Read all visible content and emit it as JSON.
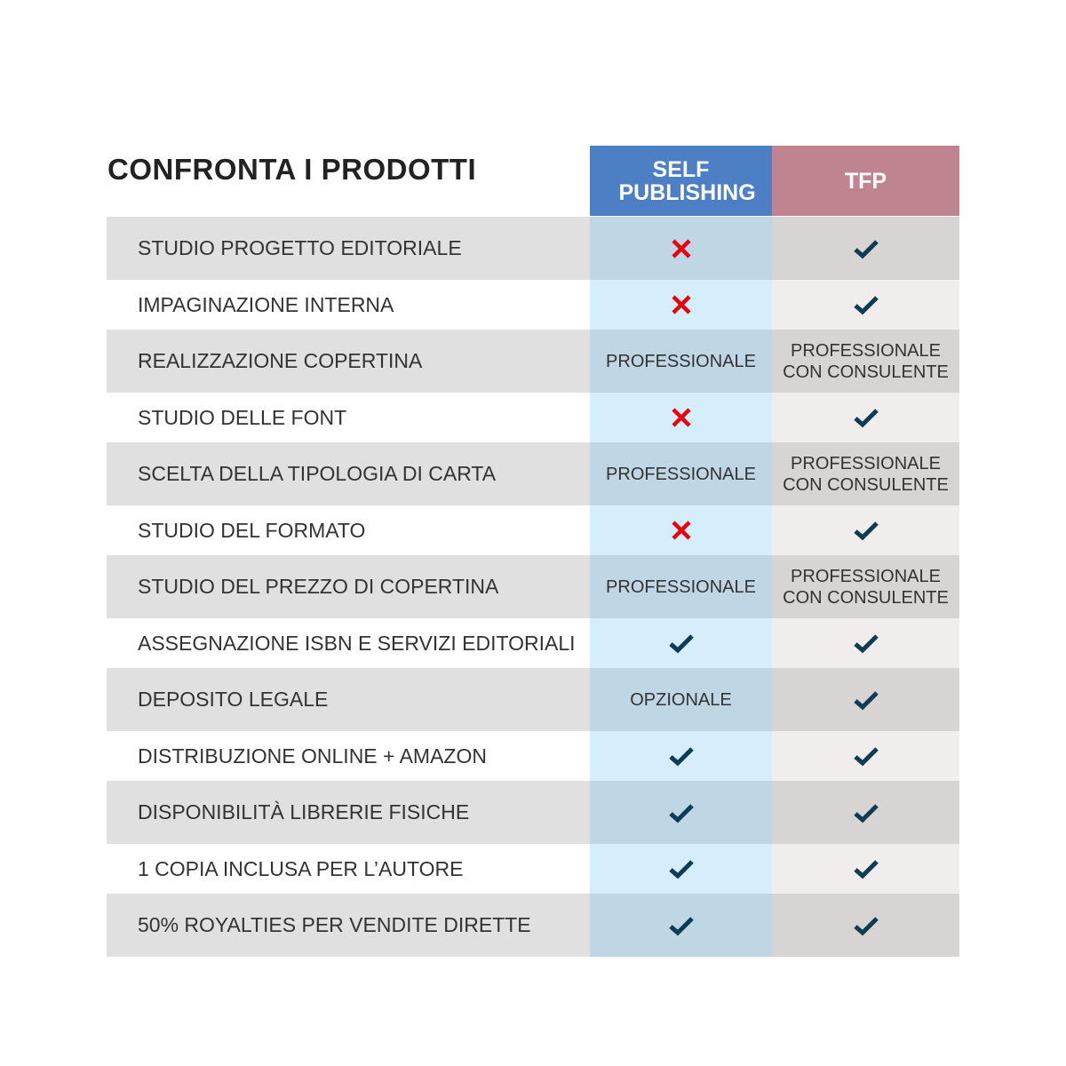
{
  "title": "CONFRONTA I PRODOTTI",
  "columns": {
    "self_publishing": "SELF PUBLISHING",
    "tfp": "TFP"
  },
  "colors": {
    "self_publishing_header": "#4c7fc4",
    "tfp_header": "#c08490",
    "check": "#0d3d56",
    "cross": "#e8000d"
  },
  "rows": [
    {
      "label": "STUDIO PROGETTO EDITORIALE",
      "sp": "cross-icon",
      "tfp": "check-icon"
    },
    {
      "label": "IMPAGINAZIONE INTERNA",
      "sp": "cross-icon",
      "tfp": "check-icon"
    },
    {
      "label": "REALIZZAZIONE COPERTINA",
      "sp": "PROFESSIONALE",
      "tfp": "PROFESSIONALE CON CONSULENTE"
    },
    {
      "label": "STUDIO DELLE FONT",
      "sp": "cross-icon",
      "tfp": "check-icon"
    },
    {
      "label": "SCELTA DELLA TIPOLOGIA DI CARTA",
      "sp": "PROFESSIONALE",
      "tfp": "PROFESSIONALE CON CONSULENTE"
    },
    {
      "label": "STUDIO DEL FORMATO",
      "sp": "cross-icon",
      "tfp": "check-icon"
    },
    {
      "label": "STUDIO DEL PREZZO DI COPERTINA",
      "sp": "PROFESSIONALE",
      "tfp": "PROFESSIONALE CON CONSULENTE"
    },
    {
      "label": "ASSEGNAZIONE ISBN E SERVIZI EDITORIALI",
      "sp": "check-icon",
      "tfp": "check-icon"
    },
    {
      "label": "DEPOSITO LEGALE",
      "sp": "OPZIONALE",
      "tfp": "check-icon"
    },
    {
      "label": "DISTRIBUZIONE ONLINE + AMAZON",
      "sp": "check-icon",
      "tfp": "check-icon"
    },
    {
      "label": "DISPONIBILITÀ LIBRERIE FISICHE",
      "sp": "check-icon",
      "tfp": "check-icon"
    },
    {
      "label": "1 COPIA INCLUSA PER L’AUTORE",
      "sp": "check-icon",
      "tfp": "check-icon"
    },
    {
      "label": "50% ROYALTIES PER VENDITE DIRETTE",
      "sp": "check-icon",
      "tfp": "check-icon"
    }
  ]
}
